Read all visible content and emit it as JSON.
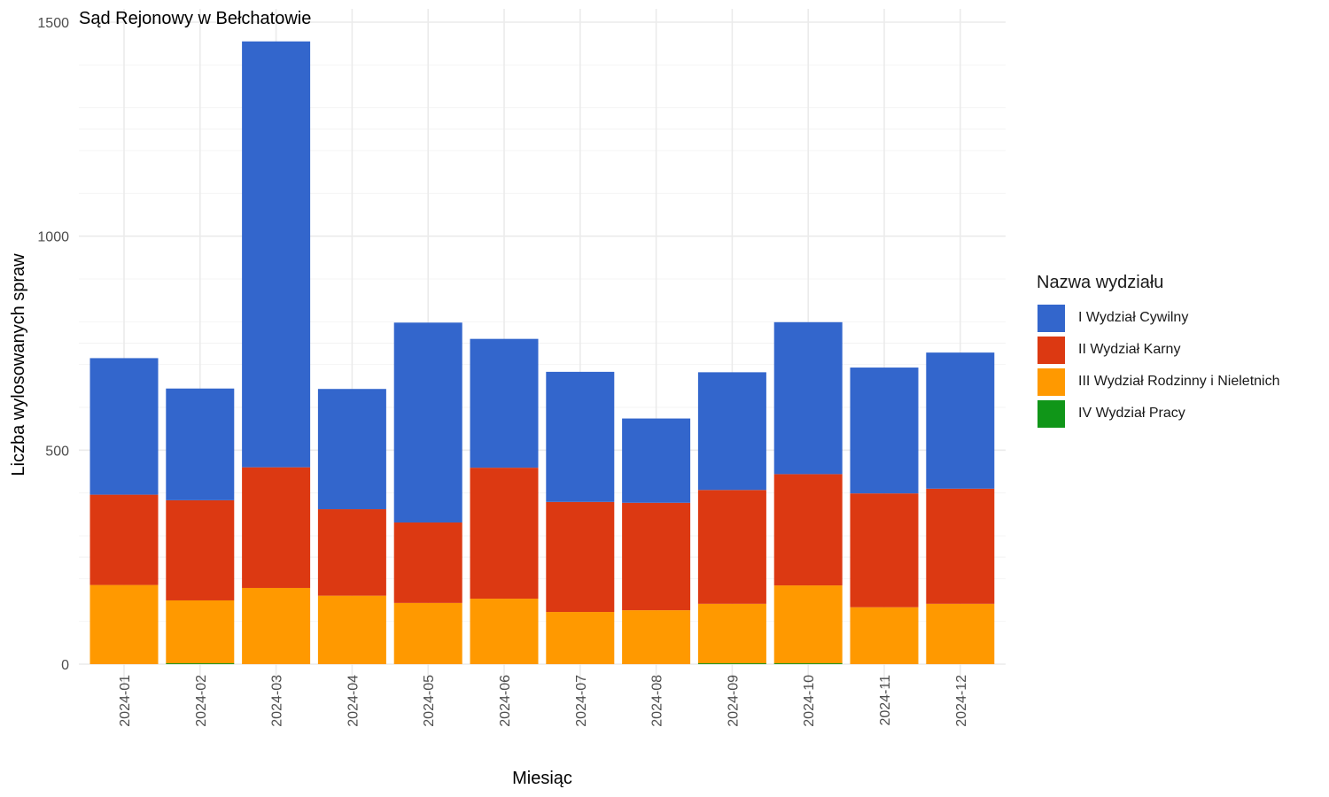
{
  "chart_data": {
    "type": "bar",
    "stacked": true,
    "title": "Sąd Rejonowy w Bełchatowie",
    "xlabel": "Miesiąc",
    "ylabel": "Liczba wylosowanych spraw",
    "ylim": [
      0,
      1500
    ],
    "yticks": [
      0,
      500,
      1000,
      1500
    ],
    "grid": true,
    "legend_position": "right",
    "legend_title": "Nazwa wydziału",
    "categories": [
      "2024-01",
      "2024-02",
      "2024-03",
      "2024-04",
      "2024-05",
      "2024-06",
      "2024-07",
      "2024-08",
      "2024-09",
      "2024-10",
      "2024-11",
      "2024-12"
    ],
    "series": [
      {
        "name": "IV Wydział Pracy",
        "color": "#109618",
        "values": [
          0,
          2,
          0,
          0,
          0,
          0,
          0,
          0,
          2,
          2,
          0,
          0
        ]
      },
      {
        "name": "III Wydział Rodzinny i Nieletnich",
        "color": "#FF9900",
        "values": [
          185,
          147,
          178,
          160,
          143,
          153,
          122,
          126,
          139,
          182,
          133,
          141
        ]
      },
      {
        "name": "II Wydział Karny",
        "color": "#DC3912",
        "values": [
          211,
          234,
          282,
          202,
          188,
          306,
          257,
          251,
          266,
          260,
          266,
          269
        ]
      },
      {
        "name": "I Wydział Cywilny",
        "color": "#3366CC",
        "values": [
          319,
          261,
          995,
          281,
          467,
          301,
          304,
          197,
          275,
          355,
          294,
          318
        ]
      }
    ]
  },
  "legend": {
    "title": "Nazwa wydziału",
    "items": [
      {
        "label": "I Wydział Cywilny",
        "color": "#3366CC"
      },
      {
        "label": "II Wydział Karny",
        "color": "#DC3912"
      },
      {
        "label": "III Wydział Rodzinny i Nieletnich",
        "color": "#FF9900"
      },
      {
        "label": "IV Wydział Pracy",
        "color": "#109618"
      }
    ]
  }
}
